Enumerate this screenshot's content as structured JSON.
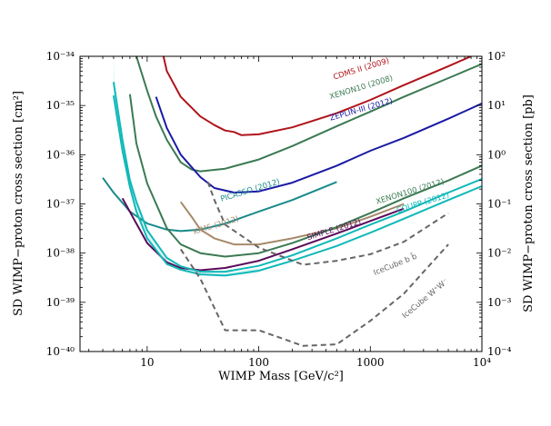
{
  "chart_data": {
    "type": "line",
    "xscale": "log",
    "yscale": "log",
    "xlim": [
      2.5,
      10000
    ],
    "ylim": [
      1e-40,
      1e-34
    ],
    "xlabel": "WIMP Mass [GeV/c²]",
    "ylabel": "SD WIMP−proton cross section [cm²]",
    "ylabel_right": "SD WIMP−proton cross section [pb]",
    "x_ticks": [
      {
        "value": 10,
        "label": "10"
      },
      {
        "value": 100,
        "label": "100"
      },
      {
        "value": 1000,
        "label": "1000"
      },
      {
        "value": 10000,
        "label": "10⁴"
      }
    ],
    "y_ticks_left": [
      {
        "value": 1e-34,
        "label": "10⁻³⁴"
      },
      {
        "value": 1e-35,
        "label": "10⁻³⁵"
      },
      {
        "value": 1e-36,
        "label": "10⁻³⁶"
      },
      {
        "value": 1e-37,
        "label": "10⁻³⁷"
      },
      {
        "value": 1e-38,
        "label": "10⁻³⁸"
      },
      {
        "value": 1e-39,
        "label": "10⁻³⁹"
      },
      {
        "value": 1e-40,
        "label": "10⁻⁴⁰"
      }
    ],
    "y_ticks_right": [
      {
        "value": 1e-34,
        "label": "10²"
      },
      {
        "value": 1e-35,
        "label": "10¹"
      },
      {
        "value": 1e-36,
        "label": "10⁰"
      },
      {
        "value": 1e-37,
        "label": "10⁻¹"
      },
      {
        "value": 1e-38,
        "label": "10⁻²"
      },
      {
        "value": 1e-39,
        "label": "10⁻³"
      },
      {
        "value": 1e-40,
        "label": "10⁻⁴"
      }
    ],
    "band": {
      "name": "COUPP allowed band",
      "color": "#dff5f5",
      "upper": [
        [
          5,
          1e-34
        ],
        [
          5.2,
          1.6e-35
        ],
        [
          6,
          1.8e-36
        ],
        [
          7,
          3.8e-37
        ],
        [
          8,
          1.4e-37
        ],
        [
          10,
          3.2e-38
        ],
        [
          15,
          8e-39
        ],
        [
          20,
          5.5e-39
        ],
        [
          30,
          4.2e-39
        ],
        [
          50,
          4e-39
        ],
        [
          80,
          4.6e-39
        ],
        [
          100,
          5e-39
        ]
      ],
      "lower": [
        [
          5,
          1.6e-35
        ],
        [
          6,
          1.2e-36
        ],
        [
          7,
          2.2e-37
        ],
        [
          8,
          7e-38
        ],
        [
          10,
          2e-38
        ],
        [
          15,
          6.2e-39
        ],
        [
          20,
          4.8e-39
        ],
        [
          30,
          3.8e-39
        ],
        [
          50,
          3.4e-39
        ],
        [
          80,
          3.7e-39
        ],
        [
          100,
          4e-39
        ]
      ]
    },
    "series": [
      {
        "name": "CDMS II (2009)",
        "label": "CDMS II (2009)",
        "color": "#b0141a",
        "dash": "",
        "points": [
          [
            14,
            1e-34
          ],
          [
            15,
            5e-35
          ],
          [
            20,
            1.5e-35
          ],
          [
            30,
            6e-36
          ],
          [
            40,
            4e-36
          ],
          [
            50,
            3.1e-36
          ],
          [
            60,
            2.9e-36
          ],
          [
            70,
            2.5e-36
          ],
          [
            100,
            2.6e-36
          ],
          [
            200,
            3.6e-36
          ],
          [
            500,
            7e-36
          ],
          [
            1000,
            1.3e-35
          ],
          [
            2000,
            2.6e-35
          ],
          [
            5000,
            6.3e-35
          ],
          [
            8000,
            1e-34
          ]
        ],
        "label_x": 840,
        "label_y": 5e-35,
        "label_rot": -17
      },
      {
        "name": "XENON10 (2008)",
        "label": "XENON10 (2008)",
        "color": "#3b7a52",
        "dash": "",
        "points": [
          [
            8,
            1e-34
          ],
          [
            10,
            2e-35
          ],
          [
            12,
            6e-36
          ],
          [
            15,
            2e-36
          ],
          [
            20,
            7e-37
          ],
          [
            25,
            5e-37
          ],
          [
            30,
            4.6e-37
          ],
          [
            50,
            5.2e-37
          ],
          [
            100,
            8e-37
          ],
          [
            200,
            1.5e-36
          ],
          [
            500,
            3.8e-36
          ],
          [
            1000,
            7.5e-36
          ],
          [
            2000,
            1.5e-35
          ],
          [
            5000,
            3.6e-35
          ],
          [
            10000,
            7e-35
          ]
        ],
        "label_x": 840,
        "label_y": 2.1e-35,
        "label_rot": -17
      },
      {
        "name": "ZEPLIN-III (2012)",
        "label": "ZEPLIN-III (2012)",
        "color": "#1a1aa5",
        "dash": "",
        "points": [
          [
            12,
            1.5e-35
          ],
          [
            15,
            3.5e-36
          ],
          [
            20,
            1e-36
          ],
          [
            30,
            3.5e-37
          ],
          [
            40,
            2.1e-37
          ],
          [
            60,
            1.7e-37
          ],
          [
            100,
            1.8e-37
          ],
          [
            200,
            2.7e-37
          ],
          [
            500,
            6e-37
          ],
          [
            1000,
            1.2e-36
          ],
          [
            2000,
            2.2e-36
          ],
          [
            5000,
            5.4e-36
          ],
          [
            10000,
            1.1e-35
          ]
        ],
        "label_x": 840,
        "label_y": 7.5e-36,
        "label_rot": -16
      },
      {
        "name": "PICASSO (2012)",
        "label": "PICASSO (2012)",
        "color": "#1a8a8a",
        "dash": "",
        "points": [
          [
            4,
            3.4e-37
          ],
          [
            5,
            1.7e-37
          ],
          [
            7,
            7e-38
          ],
          [
            10,
            4e-38
          ],
          [
            15,
            3e-38
          ],
          [
            20,
            2.8e-38
          ],
          [
            30,
            3e-38
          ],
          [
            50,
            4e-38
          ],
          [
            100,
            7e-38
          ],
          [
            200,
            1.2e-37
          ],
          [
            500,
            2.8e-37
          ]
        ],
        "label_x": 85,
        "label_y": 1.7e-37,
        "label_rot": -17
      },
      {
        "name": "KIMS (2012)",
        "label": "KIMS (2012)",
        "color": "#a68a6a",
        "dash": "",
        "points": [
          [
            20,
            1.1e-37
          ],
          [
            25,
            5.5e-38
          ],
          [
            30,
            3e-38
          ],
          [
            40,
            2e-38
          ],
          [
            60,
            1.5e-38
          ],
          [
            100,
            1.5e-38
          ],
          [
            200,
            2e-38
          ],
          [
            500,
            3.2e-38
          ],
          [
            1000,
            5.5e-38
          ],
          [
            2000,
            1e-37
          ]
        ],
        "label_x": 42,
        "label_y": 3.3e-38,
        "label_rot": -17
      },
      {
        "name": "SIMPLE (2012)",
        "label": "SIMPLE (2012)",
        "color": "#5a0a5a",
        "dash": "",
        "points": [
          [
            6,
            1.3e-37
          ],
          [
            8,
            4e-38
          ],
          [
            10,
            1.6e-38
          ],
          [
            15,
            6.5e-39
          ],
          [
            20,
            5e-39
          ],
          [
            30,
            4.5e-39
          ],
          [
            50,
            5e-39
          ],
          [
            100,
            7e-39
          ],
          [
            200,
            1.2e-38
          ],
          [
            500,
            2.5e-38
          ],
          [
            1000,
            4.5e-38
          ],
          [
            2000,
            8e-38
          ]
        ],
        "label_x": 480,
        "label_y": 2.7e-38,
        "label_rot": -17
      },
      {
        "name": "XENON100 (2012)",
        "label": "XENON100 (2012)",
        "color": "#3b7a52",
        "dash": "",
        "points": [
          [
            7,
            1.7e-35
          ],
          [
            8,
            1.7e-36
          ],
          [
            10,
            2.6e-37
          ],
          [
            15,
            3.2e-38
          ],
          [
            20,
            1.5e-38
          ],
          [
            30,
            1e-38
          ],
          [
            50,
            8.5e-39
          ],
          [
            100,
            1e-38
          ],
          [
            200,
            1.6e-38
          ],
          [
            500,
            3.4e-38
          ],
          [
            1000,
            6.5e-38
          ],
          [
            2000,
            1.3e-37
          ],
          [
            5000,
            3e-37
          ],
          [
            10000,
            6e-37
          ]
        ],
        "label_x": 2300,
        "label_y": 1.6e-37,
        "label_rot": -17
      },
      {
        "name": "COUPP (2012)",
        "label": "COUPP (2012)",
        "color": "#10b8b8",
        "dash": "",
        "points": [
          [
            5,
            3e-35
          ],
          [
            6,
            2e-36
          ],
          [
            7,
            3e-37
          ],
          [
            8,
            1.1e-37
          ],
          [
            10,
            2.9e-38
          ],
          [
            15,
            8e-39
          ],
          [
            20,
            5.4e-39
          ],
          [
            30,
            4.2e-39
          ],
          [
            50,
            4.2e-39
          ],
          [
            100,
            5.5e-39
          ],
          [
            200,
            9e-39
          ],
          [
            500,
            2e-38
          ],
          [
            1000,
            3.8e-38
          ],
          [
            2000,
            7e-38
          ],
          [
            5000,
            1.7e-37
          ],
          [
            10000,
            3.2e-37
          ]
        ],
        "label_x": 3000,
        "label_y": 9.5e-38,
        "label_rot": -17
      },
      {
        "name": "COUPP lower",
        "label": "",
        "color": "#10b8b8",
        "dash": "",
        "points": [
          [
            5,
            1.6e-35
          ],
          [
            6,
            1.2e-36
          ],
          [
            7,
            2.2e-37
          ],
          [
            8,
            7e-38
          ],
          [
            10,
            2e-38
          ],
          [
            15,
            6e-39
          ],
          [
            20,
            4.6e-39
          ],
          [
            30,
            3.7e-39
          ],
          [
            50,
            3.5e-39
          ],
          [
            100,
            4.4e-39
          ],
          [
            200,
            7e-39
          ],
          [
            500,
            1.4e-38
          ],
          [
            1000,
            2.6e-38
          ],
          [
            2000,
            5e-38
          ],
          [
            5000,
            1.2e-37
          ],
          [
            10000,
            2.3e-37
          ]
        ],
        "label_x": 0,
        "label_y": 0,
        "label_rot": 0
      },
      {
        "name": "IceCube bb",
        "label": "IceCube b b̄",
        "color": "#666666",
        "dash": "6,4",
        "points": [
          [
            35,
            2.8e-37
          ],
          [
            40,
            1.2e-37
          ],
          [
            50,
            3.8e-38
          ],
          [
            100,
            1.3e-38
          ],
          [
            250,
            5.8e-39
          ],
          [
            500,
            7e-39
          ],
          [
            1000,
            9.5e-39
          ],
          [
            2000,
            1.7e-38
          ],
          [
            5000,
            6.5e-38
          ]
        ],
        "label_x": 1700,
        "label_y": 5.3e-39,
        "label_rot": -22
      },
      {
        "name": "IceCube W+W-",
        "label": "IceCube W⁺W⁻",
        "color": "#666666",
        "dash": "6,4",
        "points": [
          [
            20,
            1.2e-38
          ],
          [
            30,
            3e-39
          ],
          [
            50,
            2.7e-40
          ],
          [
            100,
            2.7e-40
          ],
          [
            250,
            1.3e-40
          ],
          [
            500,
            1.4e-40
          ],
          [
            1000,
            4.2e-40
          ],
          [
            2000,
            1.5e-39
          ],
          [
            5000,
            1.5e-38
          ]
        ],
        "label_x": 3200,
        "label_y": 1.1e-39,
        "label_rot": -40
      }
    ]
  }
}
